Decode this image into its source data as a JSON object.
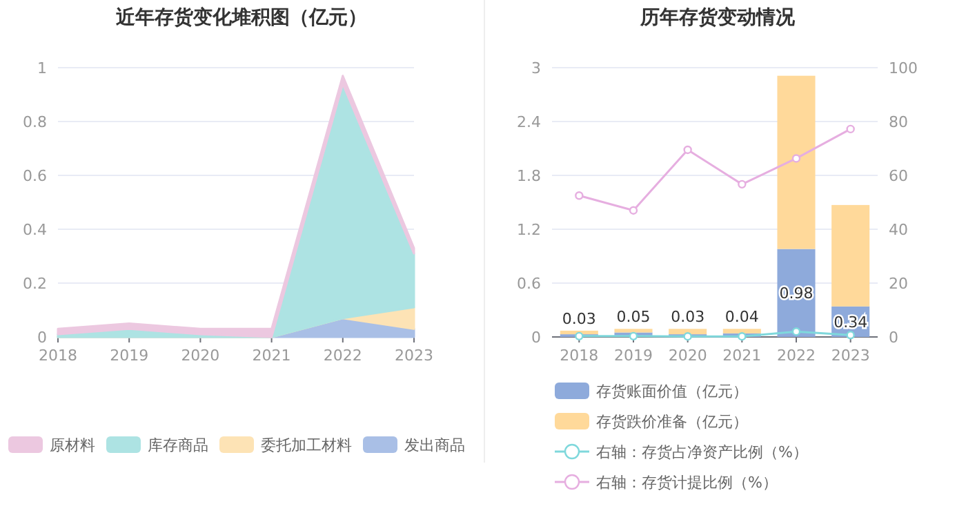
{
  "chart_data": [
    {
      "type": "area",
      "title": "近年存货变化堆积图（亿元）",
      "stacked": true,
      "categories": [
        "2018",
        "2019",
        "2020",
        "2021",
        "2022",
        "2023"
      ],
      "ylim": [
        0,
        1
      ],
      "yticks": [
        0,
        0.2,
        0.4,
        0.6,
        0.8,
        1
      ],
      "grid": "y",
      "legend": "bottom",
      "series": [
        {
          "name": "发出商品",
          "color": "#a9bfe6",
          "values": [
            0,
            0,
            0,
            0,
            0.07,
            0.03
          ]
        },
        {
          "name": "委托加工材料",
          "color": "#fde3b5",
          "values": [
            0,
            0,
            0,
            0,
            0,
            0.08
          ]
        },
        {
          "name": "库存商品",
          "color": "#ade3e3",
          "values": [
            0.01,
            0.03,
            0.01,
            0,
            0.87,
            0.2
          ]
        },
        {
          "name": "原材料",
          "color": "#ecc8e0",
          "values": [
            0.02,
            0.02,
            0.02,
            0.03,
            0.03,
            0.02
          ]
        }
      ]
    },
    {
      "type": "bar",
      "title": "历年存货变动情况",
      "stacked": true,
      "categories": [
        "2018",
        "2019",
        "2020",
        "2021",
        "2022",
        "2023"
      ],
      "ylim": [
        0,
        3
      ],
      "yticks": [
        0,
        0.6,
        1.2,
        1.8,
        2.4,
        3
      ],
      "y2lim": [
        0,
        100
      ],
      "y2ticks": [
        0,
        20,
        40,
        60,
        80,
        100
      ],
      "grid": "y",
      "legend": "bottom",
      "marker": "circle",
      "series": [
        {
          "name": "存货账面价值（亿元）",
          "color": "#8eaadb",
          "values": [
            0.03,
            0.05,
            0.03,
            0.04,
            0.98,
            0.34
          ],
          "value_labels": [
            "0.03",
            "0.05",
            "0.03",
            "0.04",
            "0.98",
            "0.34"
          ]
        },
        {
          "name": "存货跌价准备（亿元）",
          "color": "#ffd99a",
          "values": [
            0.04,
            0.04,
            0.06,
            0.05,
            1.93,
            1.13
          ]
        },
        {
          "name": "右轴：存货占净资产比例（%）",
          "type": "line",
          "axis": "y2",
          "color": "#7fd8dc",
          "values": [
            0.3,
            0.3,
            0.2,
            0.2,
            2,
            0.7
          ]
        },
        {
          "name": "右轴：存货计提比例（%）",
          "type": "line",
          "axis": "y2",
          "color": "#e6aee0",
          "values": [
            52.5,
            47,
            69.5,
            56.7,
            66.3,
            77.2
          ]
        }
      ]
    }
  ]
}
